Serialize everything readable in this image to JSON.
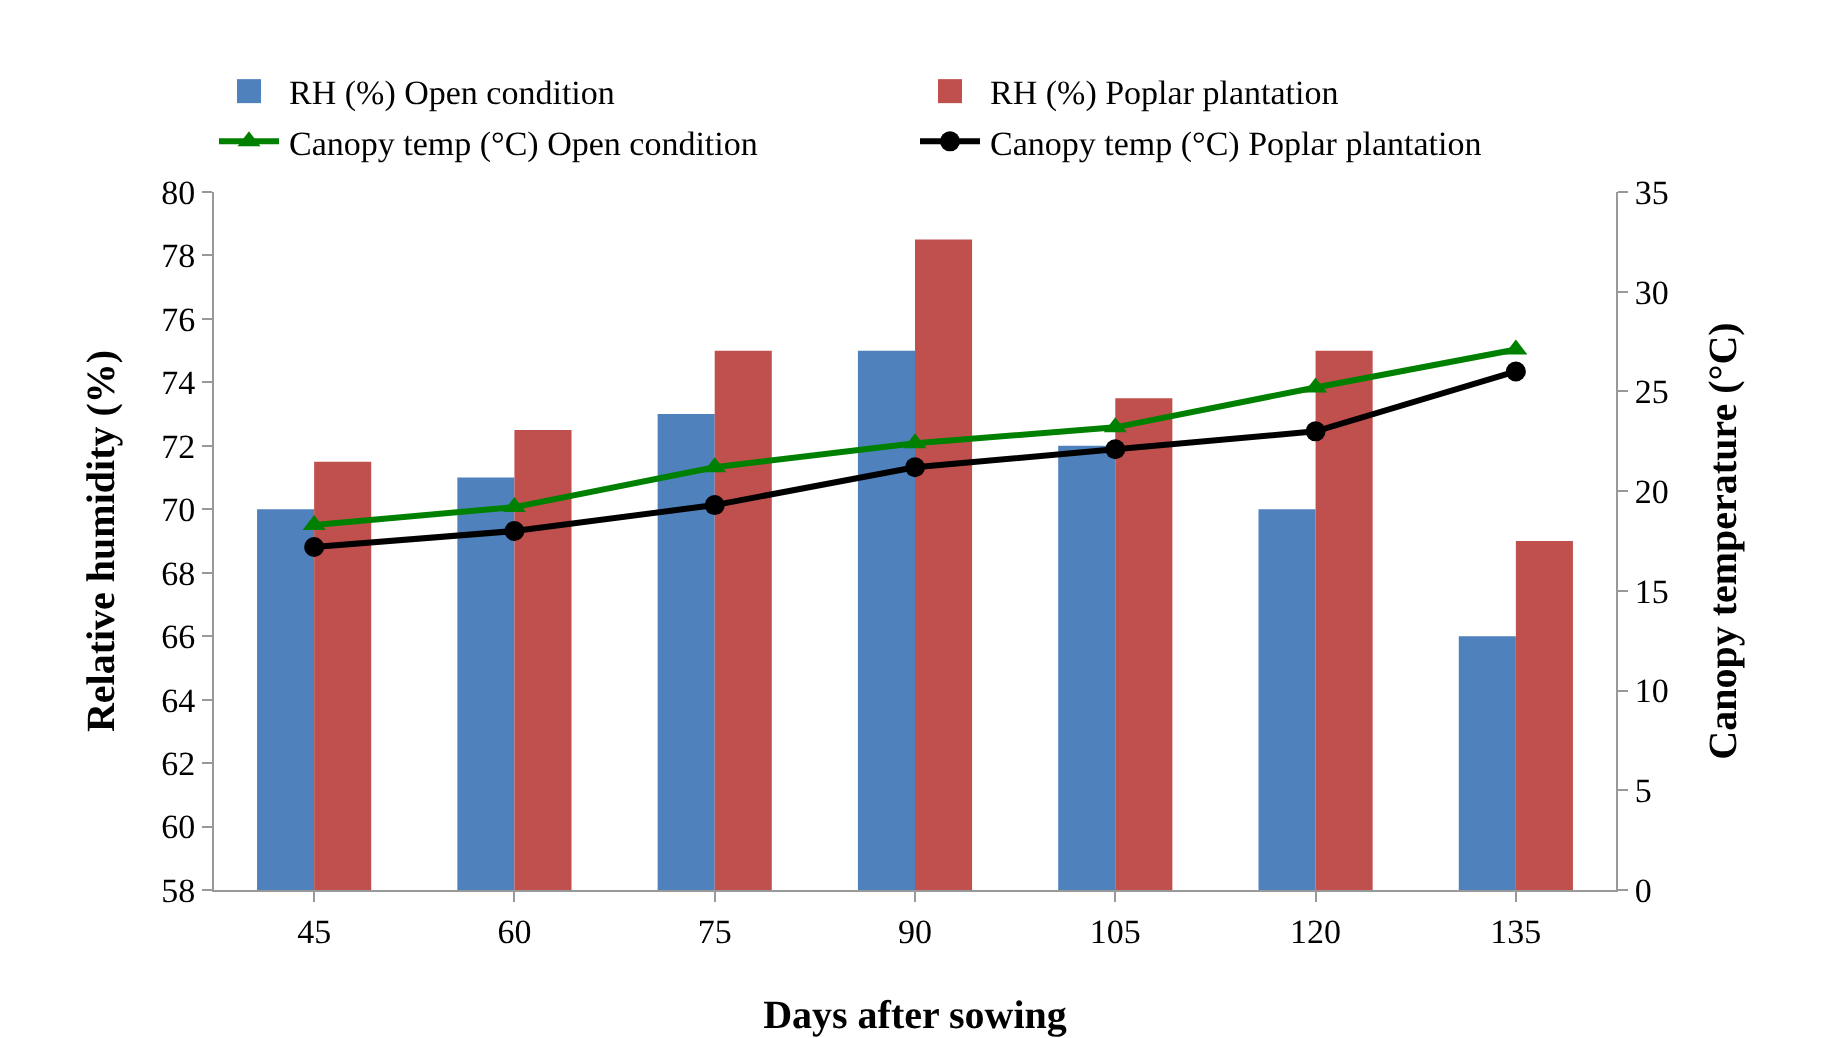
{
  "chart_data": {
    "type": "bar",
    "xlabel": "Days after sowing",
    "ylabel": "Relative humidity (%)",
    "y2label": "Canopy temperature (°C)",
    "categories": [
      "45",
      "60",
      "75",
      "90",
      "105",
      "120",
      "135"
    ],
    "series": [
      {
        "name": "RH (%) Open condition",
        "color": "#4f81bd",
        "values": [
          70,
          71,
          73,
          75,
          72,
          70,
          66
        ]
      },
      {
        "name": "RH (%) Poplar plantation",
        "color": "#c0504d",
        "values": [
          71.5,
          72.5,
          75,
          78.5,
          73.5,
          75,
          69
        ]
      },
      {
        "name": "Canopy temp (°C) Open condition",
        "type": "line",
        "axis": "y2",
        "marker": "triangle",
        "color": "#008000",
        "values": [
          18.3,
          19.2,
          21.2,
          22.4,
          23.2,
          25.2,
          27.1
        ]
      },
      {
        "name": "Canopy temp (°C) Poplar plantation",
        "type": "line",
        "axis": "y2",
        "marker": "circle",
        "color": "#000000",
        "values": [
          17.2,
          18.0,
          19.3,
          21.2,
          22.1,
          23.0,
          26.0
        ]
      }
    ],
    "ylim": [
      58,
      80
    ],
    "yticks": [
      58,
      60,
      62,
      64,
      66,
      68,
      70,
      72,
      74,
      76,
      78,
      80
    ],
    "y2lim": [
      0,
      35
    ],
    "y2ticks": [
      0,
      5,
      10,
      15,
      20,
      25,
      30,
      35
    ],
    "grid": false,
    "legend": "top"
  }
}
